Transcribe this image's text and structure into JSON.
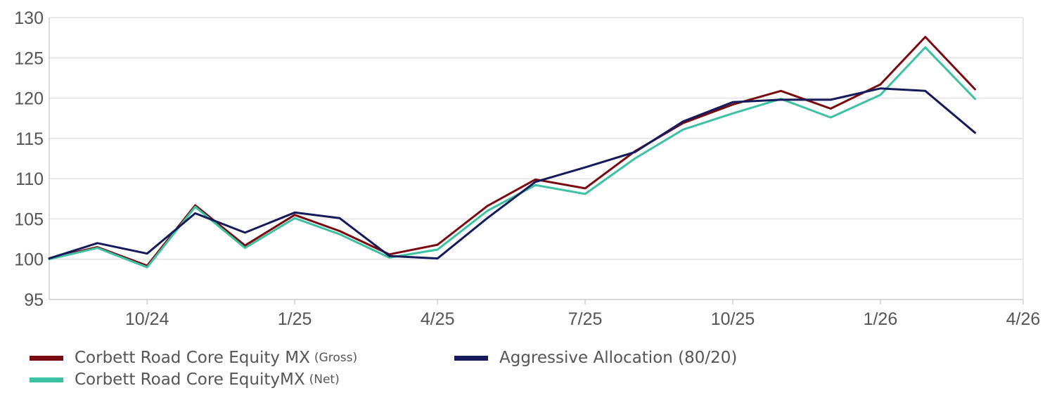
{
  "chart_data": {
    "type": "line",
    "title": "",
    "xlabel": "",
    "ylabel": "",
    "ylim": [
      95,
      130
    ],
    "yticks": [
      "95",
      "100",
      "105",
      "110",
      "115",
      "120",
      "125",
      "130"
    ],
    "xlim": [
      "2024-08-31",
      "2026-04-30"
    ],
    "xticks": [
      {
        "date": "2024-10-31",
        "label": "10/24"
      },
      {
        "date": "2025-01-31",
        "label": "1/25"
      },
      {
        "date": "2025-04-30",
        "label": "4/25"
      },
      {
        "date": "2025-07-31",
        "label": "7/25"
      },
      {
        "date": "2025-10-31",
        "label": "10/25"
      },
      {
        "date": "2026-01-31",
        "label": "1/26"
      },
      {
        "date": "2026-04-30",
        "label": "4/26"
      }
    ],
    "grid": "horizontal",
    "legend_position": "bottom",
    "x": [
      "2024-08-31",
      "2024-09-30",
      "2024-10-31",
      "2024-11-30",
      "2024-12-31",
      "2025-01-31",
      "2025-02-28",
      "2025-03-31",
      "2025-04-30",
      "2025-05-31",
      "2025-06-30",
      "2025-07-31",
      "2025-08-31",
      "2025-09-30",
      "2025-10-31",
      "2025-11-30",
      "2025-12-31",
      "2026-01-31",
      "2026-02-28",
      "2026-03-31"
    ],
    "series": [
      {
        "name": "Corbett Road Core Equity MX",
        "note": "(Gross)",
        "color": "#7a0a0f",
        "values": [
          100.1,
          101.5,
          99.2,
          106.7,
          101.7,
          105.5,
          103.5,
          100.6,
          101.8,
          106.6,
          109.9,
          108.8,
          113.4,
          116.9,
          119.2,
          120.9,
          118.7,
          121.7,
          127.6,
          121.1
        ]
      },
      {
        "name": "Corbett Road Core EquityMX",
        "note": "(Net)",
        "color": "#3cc2a2",
        "values": [
          100.0,
          101.4,
          99.0,
          106.5,
          101.4,
          105.1,
          103.1,
          100.2,
          101.2,
          106.0,
          109.2,
          108.1,
          112.5,
          116.1,
          118.1,
          119.9,
          117.6,
          120.4,
          126.3,
          119.9
        ]
      },
      {
        "name": "Aggressive Allocation (80/20)",
        "note": "",
        "color": "#141a5a",
        "values": [
          100.1,
          102.0,
          100.7,
          105.7,
          103.3,
          105.8,
          105.1,
          100.4,
          100.1,
          105.1,
          109.6,
          111.4,
          113.3,
          117.1,
          119.5,
          119.8,
          119.8,
          121.2,
          120.9,
          115.7
        ]
      }
    ]
  }
}
